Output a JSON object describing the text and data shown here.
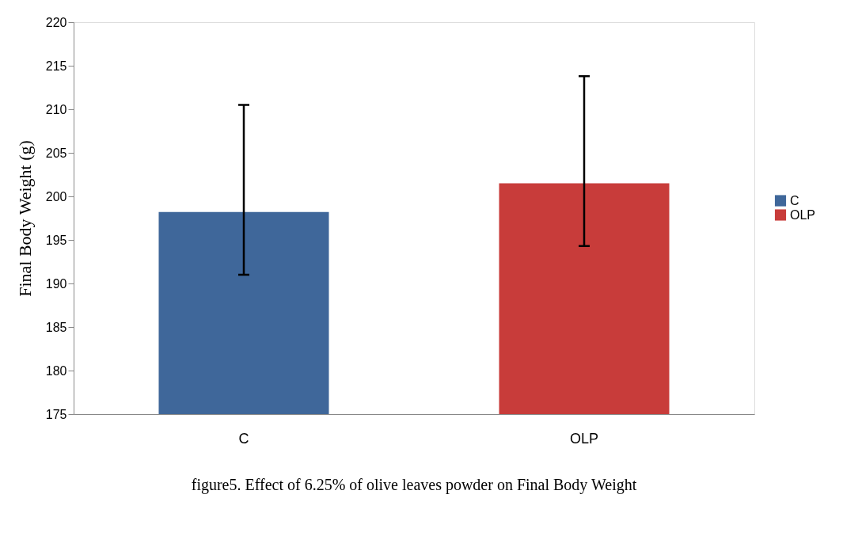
{
  "chart_data": {
    "type": "bar",
    "title": "figure5. Effect of 6.25% of olive leaves powder on Final Body Weight",
    "ylabel": "Final Body Weight (g)",
    "categories": [
      "C",
      "OLP"
    ],
    "series": [
      {
        "name": "C",
        "color": "#3f679a",
        "values": [
          198.2,
          null
        ],
        "errors": [
          [
            191.0,
            210.5
          ],
          null
        ]
      },
      {
        "name": "OLP",
        "color": "#c83c3a",
        "values": [
          null,
          201.5
        ],
        "errors": [
          null,
          [
            194.3,
            213.8
          ]
        ]
      }
    ],
    "ylim": [
      175,
      220
    ],
    "yticks": [
      175,
      180,
      185,
      190,
      195,
      200,
      205,
      210,
      215,
      220
    ],
    "grid": false,
    "legend": "right"
  }
}
